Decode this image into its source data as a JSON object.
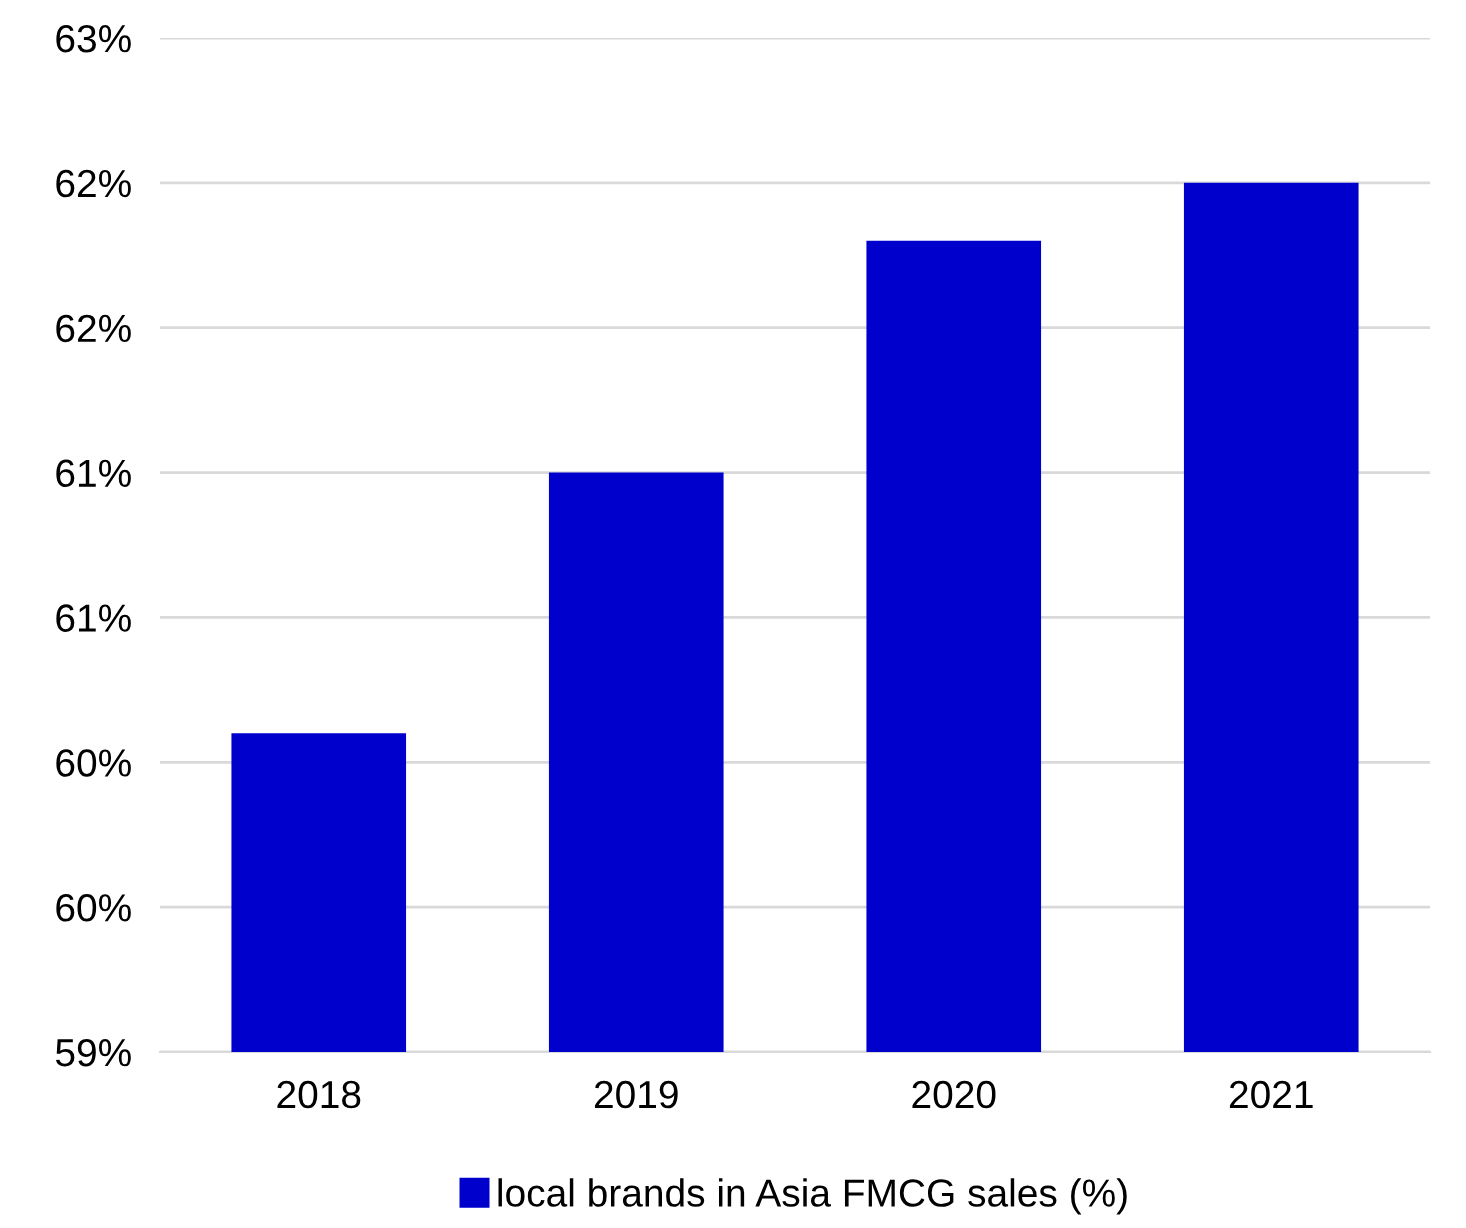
{
  "chart_data": {
    "type": "bar",
    "categories": [
      "2018",
      "2019",
      "2020",
      "2021"
    ],
    "series": [
      {
        "name": "local brands in Asia FMCG sales (%)",
        "color": "#0000cd",
        "values": [
          60.1,
          61.0,
          61.8,
          62.0
        ]
      }
    ],
    "ylim": [
      59,
      62.5
    ],
    "yticks": [
      {
        "value": 59,
        "label": "59%"
      },
      {
        "value": 59.5,
        "label": "60%"
      },
      {
        "value": 60,
        "label": "60%"
      },
      {
        "value": 60.5,
        "label": "61%"
      },
      {
        "value": 61,
        "label": "61%"
      },
      {
        "value": 61.5,
        "label": "62%"
      },
      {
        "value": 62,
        "label": "62%"
      },
      {
        "value": 62.5,
        "label": "63%"
      }
    ],
    "grid": "y",
    "legend": "bottom"
  }
}
